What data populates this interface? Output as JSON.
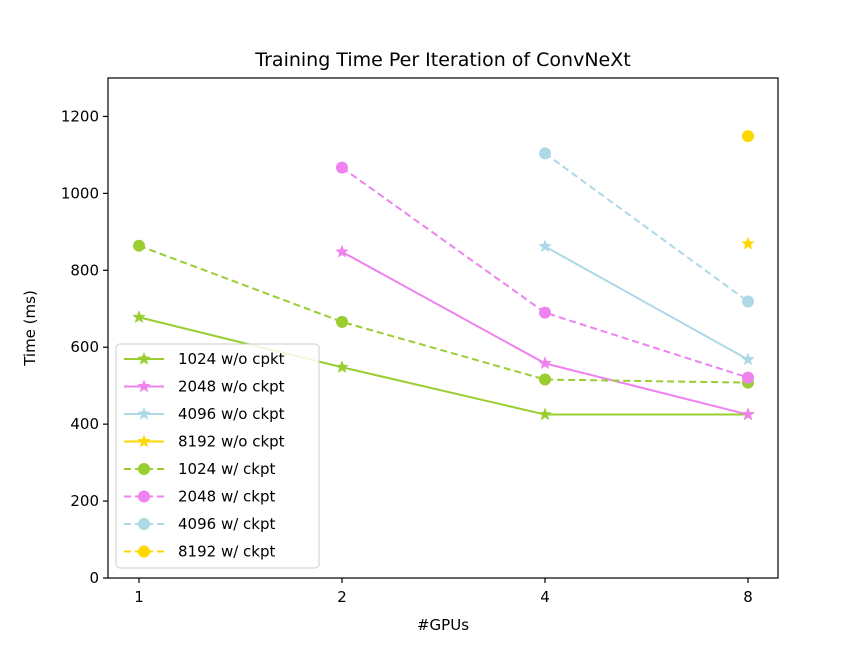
{
  "chart_data": {
    "type": "line",
    "title": "Training Time Per Iteration of ConvNeXt",
    "xlabel": "#GPUs",
    "ylabel": "Time (ms)",
    "x_scale": "log2",
    "categories": [
      "1",
      "2",
      "4",
      "8"
    ],
    "ylim": [
      0,
      1300
    ],
    "yticks": [
      "0",
      "200",
      "400",
      "600",
      "800",
      "1000",
      "1200"
    ],
    "grid": false,
    "legend_position": "lower-left",
    "series": [
      {
        "name": "1024 w/o cpkt",
        "color": "#9acd32",
        "marker": "star",
        "linestyle": "solid",
        "x": [
          1,
          2,
          4,
          8
        ],
        "values": [
          678,
          548,
          425,
          425
        ]
      },
      {
        "name": "2048 w/o ckpt",
        "color": "#ee82ee",
        "marker": "star",
        "linestyle": "solid",
        "x": [
          2,
          4,
          8
        ],
        "values": [
          848,
          558,
          425
        ]
      },
      {
        "name": "4096 w/o ckpt",
        "color": "#add8e6",
        "marker": "star",
        "linestyle": "solid",
        "x": [
          4,
          8
        ],
        "values": [
          862,
          568
        ]
      },
      {
        "name": "8192 w/o ckpt",
        "color": "#ffd700",
        "marker": "star",
        "linestyle": "solid",
        "x": [
          8
        ],
        "values": [
          869
        ]
      },
      {
        "name": "1024 w/ ckpt",
        "color": "#9acd32",
        "marker": "circle",
        "linestyle": "dashed",
        "x": [
          1,
          2,
          4,
          8
        ],
        "values": [
          864,
          666,
          516,
          508
        ]
      },
      {
        "name": "2048 w/ ckpt",
        "color": "#ee82ee",
        "marker": "circle",
        "linestyle": "dashed",
        "x": [
          2,
          4,
          8
        ],
        "values": [
          1067,
          690,
          521
        ]
      },
      {
        "name": "4096 w/ ckpt",
        "color": "#add8e6",
        "marker": "circle",
        "linestyle": "dashed",
        "x": [
          4,
          8
        ],
        "values": [
          1104,
          719
        ]
      },
      {
        "name": "8192 w/ ckpt",
        "color": "#ffd700",
        "marker": "circle",
        "linestyle": "dashed",
        "x": [
          8
        ],
        "values": [
          1149
        ]
      }
    ]
  }
}
